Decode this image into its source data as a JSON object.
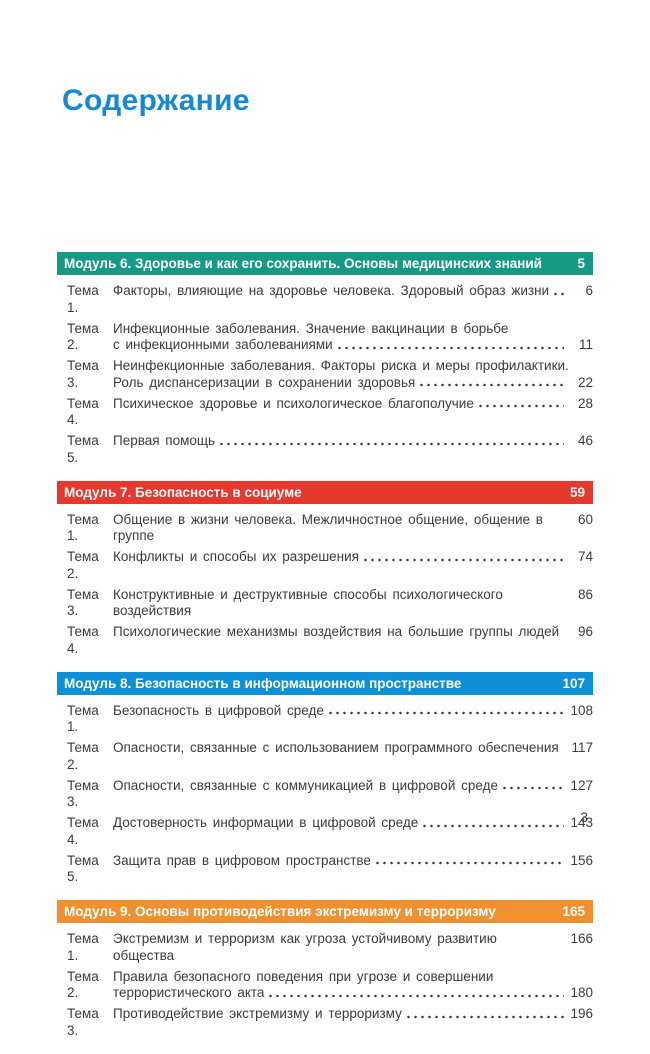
{
  "page": {
    "title": "Содержание",
    "folio": "3",
    "title_color": "#1789d2",
    "text_color": "#3b3b3b"
  },
  "modules": [
    {
      "title": "Модуль 6. Здоровье и как его сохранить. Основы медицинских знаний",
      "page": "5",
      "color": "#169a83",
      "items": [
        {
          "label": "Тема 1.",
          "lines": [
            "Факторы, влияющие на здоровье человека. Здоровый образ жизни"
          ],
          "page": "6"
        },
        {
          "label": "Тема 2.",
          "lines": [
            "Инфекционные заболевания. Значение вакцинации в борьбе",
            "с инфекционными заболеваниями"
          ],
          "page": "11"
        },
        {
          "label": "Тема 3.",
          "lines": [
            "Неинфекционные заболевания. Факторы риска и меры профилактики.",
            "Роль диспансеризации в сохранении здоровья"
          ],
          "page": "22"
        },
        {
          "label": "Тема 4.",
          "lines": [
            "Психическое здоровье и психологическое благополучие"
          ],
          "page": "28"
        },
        {
          "label": "Тема 5.",
          "lines": [
            "Первая помощь"
          ],
          "page": "46"
        }
      ]
    },
    {
      "title": "Модуль 7. Безопасность в социуме",
      "page": "59",
      "color": "#e6382d",
      "items": [
        {
          "label": "Тема 1.",
          "lines": [
            "Общение в жизни человека. Межличностное общение, общение в группе"
          ],
          "page": "60"
        },
        {
          "label": "Тема 2.",
          "lines": [
            "Конфликты и способы их разрешения"
          ],
          "page": "74"
        },
        {
          "label": "Тема 3.",
          "lines": [
            "Конструктивные и деструктивные способы психологического воздействия"
          ],
          "page": "86"
        },
        {
          "label": "Тема 4.",
          "lines": [
            "Психологические механизмы воздействия на большие группы людей"
          ],
          "page": "96"
        }
      ]
    },
    {
      "title": "Модуль 8. Безопасность в информационном пространстве",
      "page": "107",
      "color": "#0e90d7",
      "items": [
        {
          "label": "Тема 1.",
          "lines": [
            "Безопасность в цифровой среде"
          ],
          "page": "108"
        },
        {
          "label": "Тема 2.",
          "lines": [
            "Опасности, связанные с использованием программного обеспечения"
          ],
          "page": "117"
        },
        {
          "label": "Тема 3.",
          "lines": [
            "Опасности, связанные с коммуникацией в цифровой среде"
          ],
          "page": "127"
        },
        {
          "label": "Тема 4.",
          "lines": [
            "Достоверность информации в цифровой среде"
          ],
          "page": "143"
        },
        {
          "label": "Тема 5.",
          "lines": [
            "Защита прав в цифровом пространстве"
          ],
          "page": "156"
        }
      ]
    },
    {
      "title": "Модуль 9. Основы противодействия экстремизму и терроризму",
      "page": "165",
      "color": "#f0902e",
      "items": [
        {
          "label": "Тема 1.",
          "lines": [
            "Экстремизм и терроризм как угроза устойчивому развитию общества"
          ],
          "page": "166"
        },
        {
          "label": "Тема 2.",
          "lines": [
            "Правила безопасного поведения при угрозе и совершении",
            "террористического акта"
          ],
          "page": "180"
        },
        {
          "label": "Тема 3.",
          "lines": [
            "Противодействие экстремизму и терроризму"
          ],
          "page": "196"
        }
      ]
    }
  ]
}
